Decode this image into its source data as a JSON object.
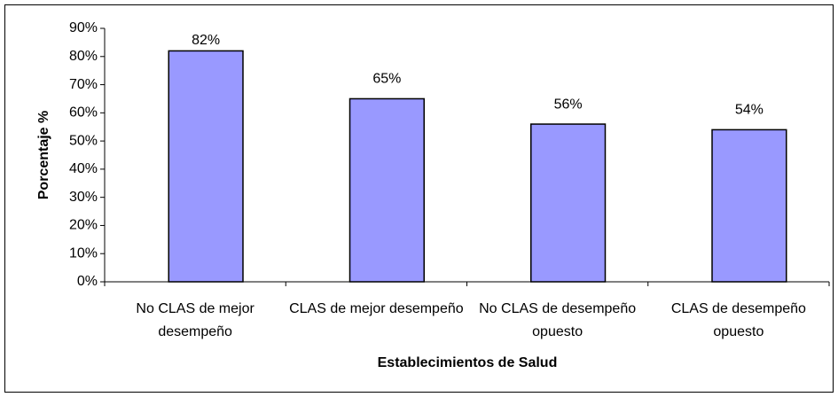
{
  "chart_data": {
    "type": "bar",
    "x_label": "Establecimientos de Salud",
    "y_label": "Porcentaje %",
    "categories": [
      "No CLAS de mejor desempeño",
      "CLAS de mejor desempeño",
      "No CLAS de desempeño opuesto",
      "CLAS de desempeño opuesto"
    ],
    "values": [
      82,
      65,
      56,
      54
    ],
    "value_labels": [
      "82%",
      "65%",
      "56%",
      "54%"
    ],
    "color": "#9999ff",
    "ylim": [
      0,
      90
    ],
    "yticks": [
      {
        "value": 0,
        "label": "0%"
      },
      {
        "value": 10,
        "label": "10%"
      },
      {
        "value": 20,
        "label": "20%"
      },
      {
        "value": 30,
        "label": "30%"
      },
      {
        "value": 40,
        "label": "40%"
      },
      {
        "value": 50,
        "label": "50%"
      },
      {
        "value": 60,
        "label": "60%"
      },
      {
        "value": 70,
        "label": "70%"
      },
      {
        "value": 80,
        "label": "80%"
      },
      {
        "value": 90,
        "label": "90%"
      }
    ],
    "grid": false
  }
}
